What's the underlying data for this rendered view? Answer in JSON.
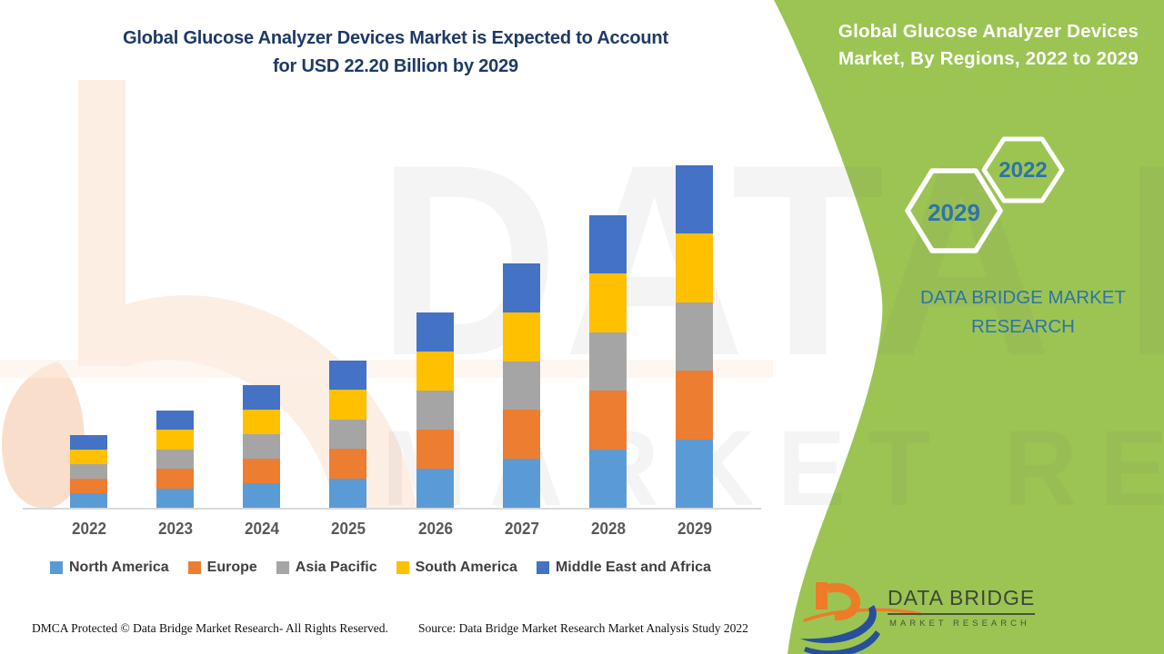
{
  "header": {
    "title_line1": "Global Glucose Analyzer Devices Market is Expected to Account",
    "title_line2": "for USD 22.20 Billion by 2029",
    "title_color": "#1E3A66"
  },
  "side_panel": {
    "heading_line1": "Global Glucose Analyzer Devices",
    "heading_line2": "Market, By Regions, 2022 to 2029",
    "badge_start_year": "2022",
    "badge_end_year": "2029",
    "brand_line1": "DATA BRIDGE MARKET",
    "brand_line2": "RESEARCH",
    "panel_color": "#9CC453",
    "badge_text_color": "#2E74A8"
  },
  "logo": {
    "name": "DATA BRIDGE",
    "tagline": "MARKET RESEARCH"
  },
  "watermark": {
    "line1": "DATA BRIDGE",
    "line2": "MARKET RESEARCH"
  },
  "footer": {
    "left": "DMCA Protected © Data Bridge Market Research- All Rights Reserved.",
    "right": "Source: Data Bridge Market Research Market Analysis Study 2022"
  },
  "chart_data": {
    "type": "bar",
    "stacked": true,
    "title": "Global Glucose Analyzer Devices Market, By Regions, 2022 to 2029",
    "unit": "USD Billion",
    "categories": [
      "2022",
      "2023",
      "2024",
      "2025",
      "2026",
      "2027",
      "2028",
      "2029"
    ],
    "series": [
      {
        "name": "North America",
        "color": "#5B9BD5",
        "values": [
          0.95,
          1.26,
          1.59,
          1.91,
          2.53,
          3.17,
          3.79,
          4.44
        ]
      },
      {
        "name": "Europe",
        "color": "#ED7D31",
        "values": [
          0.95,
          1.26,
          1.59,
          1.91,
          2.53,
          3.17,
          3.79,
          4.44
        ]
      },
      {
        "name": "Asia Pacific",
        "color": "#A5A5A5",
        "values": [
          0.95,
          1.26,
          1.59,
          1.91,
          2.53,
          3.17,
          3.79,
          4.44
        ]
      },
      {
        "name": "South America",
        "color": "#FFC000",
        "values": [
          0.95,
          1.26,
          1.59,
          1.91,
          2.53,
          3.17,
          3.79,
          4.44
        ]
      },
      {
        "name": "Middle East and Africa",
        "color": "#4472C4",
        "values": [
          0.95,
          1.26,
          1.59,
          1.91,
          2.53,
          3.17,
          3.79,
          4.44
        ]
      }
    ],
    "totals": [
      4.75,
      6.3,
      7.95,
      9.55,
      12.65,
      15.85,
      18.95,
      22.2
    ],
    "ylim": [
      0,
      24
    ],
    "gridlines": false,
    "y_axis_visible": false,
    "legend_position": "bottom"
  }
}
